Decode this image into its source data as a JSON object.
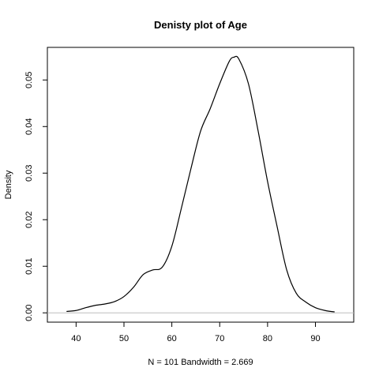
{
  "chart_data": {
    "type": "line",
    "title": "Denisty plot of  Age",
    "xlabel": "N = 101   Bandwidth = 2.669",
    "ylabel": "Density",
    "xlim": [
      34,
      98
    ],
    "ylim": [
      -0.002,
      0.057
    ],
    "x_ticks": [
      40,
      50,
      60,
      70,
      80,
      90
    ],
    "y_ticks": [
      0.0,
      0.01,
      0.02,
      0.03,
      0.04,
      0.05
    ],
    "x_tick_labels": [
      "40",
      "50",
      "60",
      "70",
      "80",
      "90"
    ],
    "y_tick_labels": [
      "0.00",
      "0.01",
      "0.02",
      "0.03",
      "0.04",
      "0.05"
    ],
    "baseline": 0,
    "baseline_color": "#bebebe",
    "line_color": "#000000",
    "series": [
      {
        "x": [
          38,
          40,
          42,
          44,
          46,
          48,
          50,
          52,
          54,
          56,
          58,
          60,
          62,
          64,
          66,
          68,
          70,
          72,
          73,
          74,
          76,
          78,
          80,
          82,
          84,
          86,
          88,
          90,
          92,
          94
        ],
        "y": [
          0.0003,
          0.0005,
          0.0011,
          0.0016,
          0.0019,
          0.0024,
          0.0035,
          0.0055,
          0.0082,
          0.0092,
          0.0098,
          0.0143,
          0.0225,
          0.031,
          0.039,
          0.0438,
          0.0492,
          0.054,
          0.0549,
          0.0545,
          0.0492,
          0.0392,
          0.0282,
          0.0185,
          0.0092,
          0.0042,
          0.0023,
          0.0011,
          0.0005,
          0.0002
        ]
      }
    ]
  }
}
